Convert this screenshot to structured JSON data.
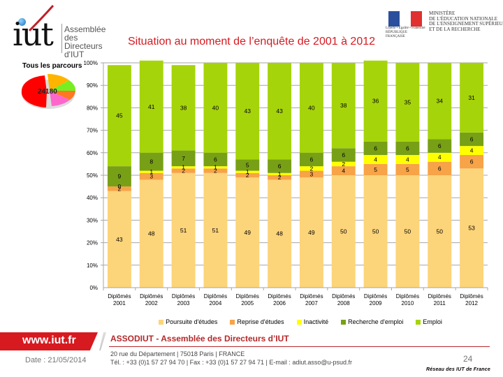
{
  "header": {
    "logo": {
      "mark": "iut",
      "text_lines": [
        "Assemblée",
        "des Directeurs",
        "d'IUT"
      ]
    },
    "ministry": {
      "flag_caption": "Liberté • Égalité • Fraternité RÉPUBLIQUE FRANÇAISE",
      "lines": [
        "MINISTÈRE",
        "DE L'ÉDUCATION NATIONALE",
        "DE L'ENSEIGNEMENT SUPÉRIEUR",
        "ET DE LA RECHERCHE"
      ]
    },
    "title": "Situation au moment de l’enquête de 2001 à 2012"
  },
  "pie": {
    "title": "Tous les parcours",
    "center_label": "24180",
    "slice_colors": [
      "#ff0000",
      "#ffb400",
      "#77ee22",
      "#ff7722",
      "#ff66cc"
    ]
  },
  "chart_data": {
    "type": "bar",
    "stacked": true,
    "percent": true,
    "title": "Situation au moment de l’enquête de 2001 à 2012",
    "xlabel": "",
    "ylabel": "",
    "ylim": [
      0,
      100
    ],
    "yticks": [
      "0%",
      "10%",
      "20%",
      "30%",
      "40%",
      "50%",
      "60%",
      "70%",
      "80%",
      "90%",
      "100%"
    ],
    "grid": true,
    "legend_position": "bottom",
    "categories": [
      [
        "Diplômés",
        "2001"
      ],
      [
        "Diplômés",
        "2002"
      ],
      [
        "Diplômés",
        "2003"
      ],
      [
        "Diplômés",
        "2004"
      ],
      [
        "Diplômés",
        "2005"
      ],
      [
        "Diplômés",
        "2006"
      ],
      [
        "Diplômés",
        "2007"
      ],
      [
        "Diplômés",
        "2008"
      ],
      [
        "Diplômés",
        "2009"
      ],
      [
        "Diplômés",
        "2010"
      ],
      [
        "Diplômés",
        "2011"
      ],
      [
        "Diplômés",
        "2012"
      ]
    ],
    "series": [
      {
        "name": "Poursuite d'études",
        "color": "#fcd47a",
        "values": [
          43,
          48,
          51,
          51,
          49,
          48,
          49,
          50,
          50,
          50,
          50,
          53
        ]
      },
      {
        "name": "Reprise d'études",
        "color": "#f7a347",
        "values": [
          2,
          3,
          2,
          2,
          2,
          2,
          3,
          4,
          5,
          5,
          6,
          6
        ]
      },
      {
        "name": "Inactivité",
        "color": "#ffff00",
        "values": [
          0,
          1,
          1,
          1,
          1,
          1,
          2,
          2,
          4,
          4,
          4,
          4
        ]
      },
      {
        "name": "Recherche d'emploi",
        "color": "#78a016",
        "values": [
          9,
          8,
          7,
          6,
          5,
          6,
          6,
          6,
          6,
          6,
          6,
          6
        ]
      },
      {
        "name": "Emploi",
        "color": "#a6d40a",
        "values": [
          45,
          41,
          38,
          40,
          43,
          43,
          40,
          38,
          36,
          35,
          34,
          31
        ]
      }
    ]
  },
  "footer": {
    "url": "www.iut.fr",
    "date": "Date : 21/05/2014",
    "organization": "ASSODIUT - Assemblée des Directeurs d’IUT",
    "address": "20 rue du Département | 75018 Paris | FRANCE",
    "contact": "Tél. : +33 (0)1 57 27 94 70 | Fax : +33 (0)1 57 27 94 71 | E-mail : adiut.asso@u-psud.fr",
    "page_number": "24",
    "network": "Réseau des IUT de France"
  }
}
